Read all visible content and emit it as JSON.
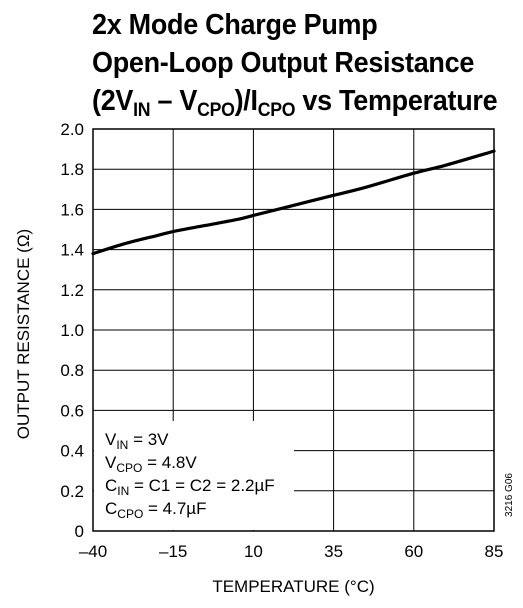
{
  "title": {
    "line1": "2x Mode Charge Pump",
    "line2": "Open-Loop Output Resistance",
    "line3_a": "(2V",
    "line3_a_sub": "IN",
    "line3_b": " – V",
    "line3_b_sub": "CPO",
    "line3_c": ")/I",
    "line3_c_sub": "CPO",
    "line3_d": " vs Temperature"
  },
  "annotations": [
    {
      "main": "V",
      "sub": "IN",
      "rest": " = 3V"
    },
    {
      "main": "V",
      "sub": "CPO",
      "rest": " = 4.8V"
    },
    {
      "main": "C",
      "sub": "IN",
      "rest": " = C1 = C2 = 2.2µF"
    },
    {
      "main": "C",
      "sub": "CPO",
      "rest": " = 4.7µF"
    }
  ],
  "figure_code": "3216 G06",
  "chart_data": {
    "type": "line",
    "xlabel": "TEMPERATURE (°C)",
    "ylabel": "OUTPUT RESISTANCE (Ω)",
    "xlim": [
      -40,
      85
    ],
    "ylim": [
      0,
      2.0
    ],
    "xticks": [
      -40,
      -15,
      10,
      35,
      60,
      85
    ],
    "xtick_labels": [
      "–40",
      "–15",
      "10",
      "35",
      "60",
      "85"
    ],
    "yticks": [
      0,
      0.2,
      0.4,
      0.6,
      0.8,
      1.0,
      1.2,
      1.4,
      1.6,
      1.8,
      2.0
    ],
    "ytick_labels": [
      "0",
      "0.2",
      "0.4",
      "0.6",
      "0.8",
      "1.0",
      "1.2",
      "1.4",
      "1.6",
      "1.8",
      "2.0"
    ],
    "grid": true,
    "series": [
      {
        "x": [
          -40,
          -30,
          -20,
          -15,
          -5,
          5,
          10,
          20,
          35,
          45,
          60,
          70,
          85
        ],
        "y": [
          1.38,
          1.43,
          1.47,
          1.49,
          1.52,
          1.55,
          1.57,
          1.61,
          1.67,
          1.71,
          1.78,
          1.82,
          1.89
        ],
        "color": "#000000"
      }
    ]
  }
}
